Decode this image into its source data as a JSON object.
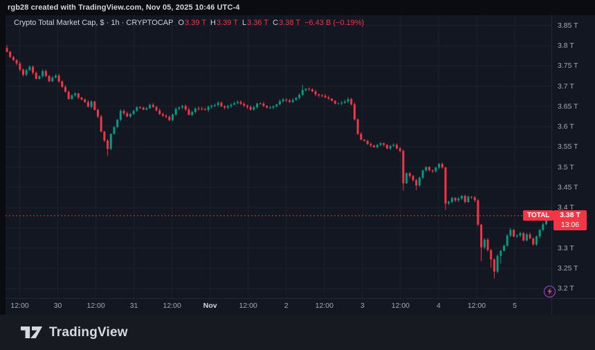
{
  "topbar": {
    "text": "rgb28 created with TradingView.com, Nov 05, 2025 10:46 UTC-4"
  },
  "legend": {
    "title": "Crypto Total Market Cap, $ · 1h · CRYPTOCAP",
    "o_label": "O",
    "o_value": "3.39 T",
    "h_label": "H",
    "h_value": "3.39 T",
    "l_label": "L",
    "l_value": "3.36 T",
    "c_label": "C",
    "c_value": "3.38 T",
    "change": "−6.43 B (−0.19%)"
  },
  "price_line": {
    "tag": "TOTAL",
    "price": "3.38 T",
    "countdown": "13:06"
  },
  "footer": {
    "brand": "TradingView"
  },
  "chart_data": {
    "type": "candlestick",
    "title": "Crypto Total Market Cap, $",
    "symbol": "CRYPTOCAP TOTAL",
    "interval": "1h",
    "ohlc_current": {
      "open": 3.39,
      "high": 3.39,
      "low": 3.36,
      "close": 3.38,
      "change_abs": "−6.43 B",
      "change_pct": "−0.19%"
    },
    "last_price": 3.38,
    "unit": "T",
    "y_axis": {
      "prices": [
        3.85,
        3.8,
        3.75,
        3.7,
        3.65,
        3.6,
        3.55,
        3.5,
        3.45,
        3.4,
        3.35,
        3.3,
        3.25,
        3.2
      ],
      "labels": [
        "3.85 T",
        "3.8 T",
        "3.75 T",
        "3.7 T",
        "3.65 T",
        "3.6 T",
        "3.55 T",
        "3.5 T",
        "3.45 T",
        "3.4 T",
        "3.35 T",
        "3.3 T",
        "3.25 T",
        "3.2 T"
      ],
      "range": [
        3.2,
        3.85
      ]
    },
    "x_axis": {
      "labels": [
        "12:00",
        "30",
        "12:00",
        "31",
        "12:00",
        "Nov",
        "12:00",
        "2",
        "12:00",
        "3",
        "12:00",
        "4",
        "12:00",
        "5"
      ],
      "bold_labels": [
        "Nov"
      ]
    },
    "grid": true,
    "num_candles": 168,
    "anchors": [
      [
        0,
        3.785
      ],
      [
        1,
        3.772
      ],
      [
        3,
        3.756
      ],
      [
        5,
        3.728
      ],
      [
        7,
        3.748
      ],
      [
        9,
        3.718
      ],
      [
        11,
        3.737
      ],
      [
        13,
        3.712
      ],
      [
        15,
        3.726
      ],
      [
        17,
        3.698
      ],
      [
        19,
        3.668
      ],
      [
        21,
        3.682
      ],
      [
        23,
        3.667
      ],
      [
        25,
        3.649
      ],
      [
        26,
        3.662
      ],
      [
        28,
        3.625
      ],
      [
        29,
        3.588
      ],
      [
        31,
        3.545
      ],
      [
        32,
        3.582
      ],
      [
        34,
        3.617
      ],
      [
        35,
        3.639
      ],
      [
        37,
        3.625
      ],
      [
        40,
        3.648
      ],
      [
        42,
        3.642
      ],
      [
        44,
        3.654
      ],
      [
        46,
        3.64
      ],
      [
        48,
        3.627
      ],
      [
        50,
        3.616
      ],
      [
        52,
        3.644
      ],
      [
        54,
        3.651
      ],
      [
        56,
        3.629
      ],
      [
        58,
        3.645
      ],
      [
        61,
        3.641
      ],
      [
        63,
        3.652
      ],
      [
        65,
        3.659
      ],
      [
        67,
        3.647
      ],
      [
        69,
        3.654
      ],
      [
        71,
        3.661
      ],
      [
        73,
        3.652
      ],
      [
        75,
        3.642
      ],
      [
        77,
        3.657
      ],
      [
        79,
        3.651
      ],
      [
        81,
        3.647
      ],
      [
        83,
        3.655
      ],
      [
        85,
        3.667
      ],
      [
        87,
        3.661
      ],
      [
        89,
        3.671
      ],
      [
        91,
        3.69
      ],
      [
        93,
        3.692
      ],
      [
        95,
        3.68
      ],
      [
        97,
        3.676
      ],
      [
        99,
        3.669
      ],
      [
        101,
        3.657
      ],
      [
        103,
        3.659
      ],
      [
        105,
        3.668
      ],
      [
        106,
        3.655
      ],
      [
        107,
        3.618
      ],
      [
        108,
        3.582
      ],
      [
        109,
        3.568
      ],
      [
        111,
        3.557
      ],
      [
        113,
        3.549
      ],
      [
        115,
        3.559
      ],
      [
        117,
        3.546
      ],
      [
        119,
        3.555
      ],
      [
        121,
        3.54
      ],
      [
        122,
        3.46
      ],
      [
        123,
        3.485
      ],
      [
        125,
        3.468
      ],
      [
        126,
        3.455
      ],
      [
        128,
        3.492
      ],
      [
        129,
        3.5
      ],
      [
        131,
        3.49
      ],
      [
        132,
        3.499
      ],
      [
        133,
        3.508
      ],
      [
        134,
        3.499
      ],
      [
        135,
        3.41
      ],
      [
        137,
        3.424
      ],
      [
        138,
        3.418
      ],
      [
        140,
        3.429
      ],
      [
        141,
        3.414
      ],
      [
        142,
        3.427
      ],
      [
        144,
        3.418
      ],
      [
        145,
        3.358
      ],
      [
        146,
        3.302
      ],
      [
        147,
        3.321
      ],
      [
        149,
        3.272
      ],
      [
        150,
        3.242
      ],
      [
        151,
        3.281
      ],
      [
        153,
        3.306
      ],
      [
        154,
        3.331
      ],
      [
        155,
        3.345
      ],
      [
        156,
        3.329
      ],
      [
        158,
        3.337
      ],
      [
        159,
        3.319
      ],
      [
        160,
        3.334
      ],
      [
        161,
        3.324
      ],
      [
        162,
        3.309
      ],
      [
        163,
        3.329
      ],
      [
        164,
        3.345
      ],
      [
        166,
        3.372
      ],
      [
        167,
        3.38
      ]
    ],
    "wick_overrides": {
      "0": {
        "high": 3.801
      },
      "31": {
        "low": 3.528
      },
      "91": {
        "high": 3.703
      },
      "122": {
        "low": 3.442
      },
      "126": {
        "low": 3.443
      },
      "135": {
        "low": 3.394
      },
      "146": {
        "low": 3.268
      },
      "149": {
        "low": 3.252
      },
      "150": {
        "low": 3.225
      },
      "152": {
        "low": 3.262
      },
      "166": {
        "high": 3.386
      },
      "167": {
        "high": 3.388
      }
    },
    "colors": {
      "up": "#089981",
      "down": "#f23645",
      "price_line": "#f23645",
      "background": "#131722",
      "grid": "#1e222d"
    }
  }
}
